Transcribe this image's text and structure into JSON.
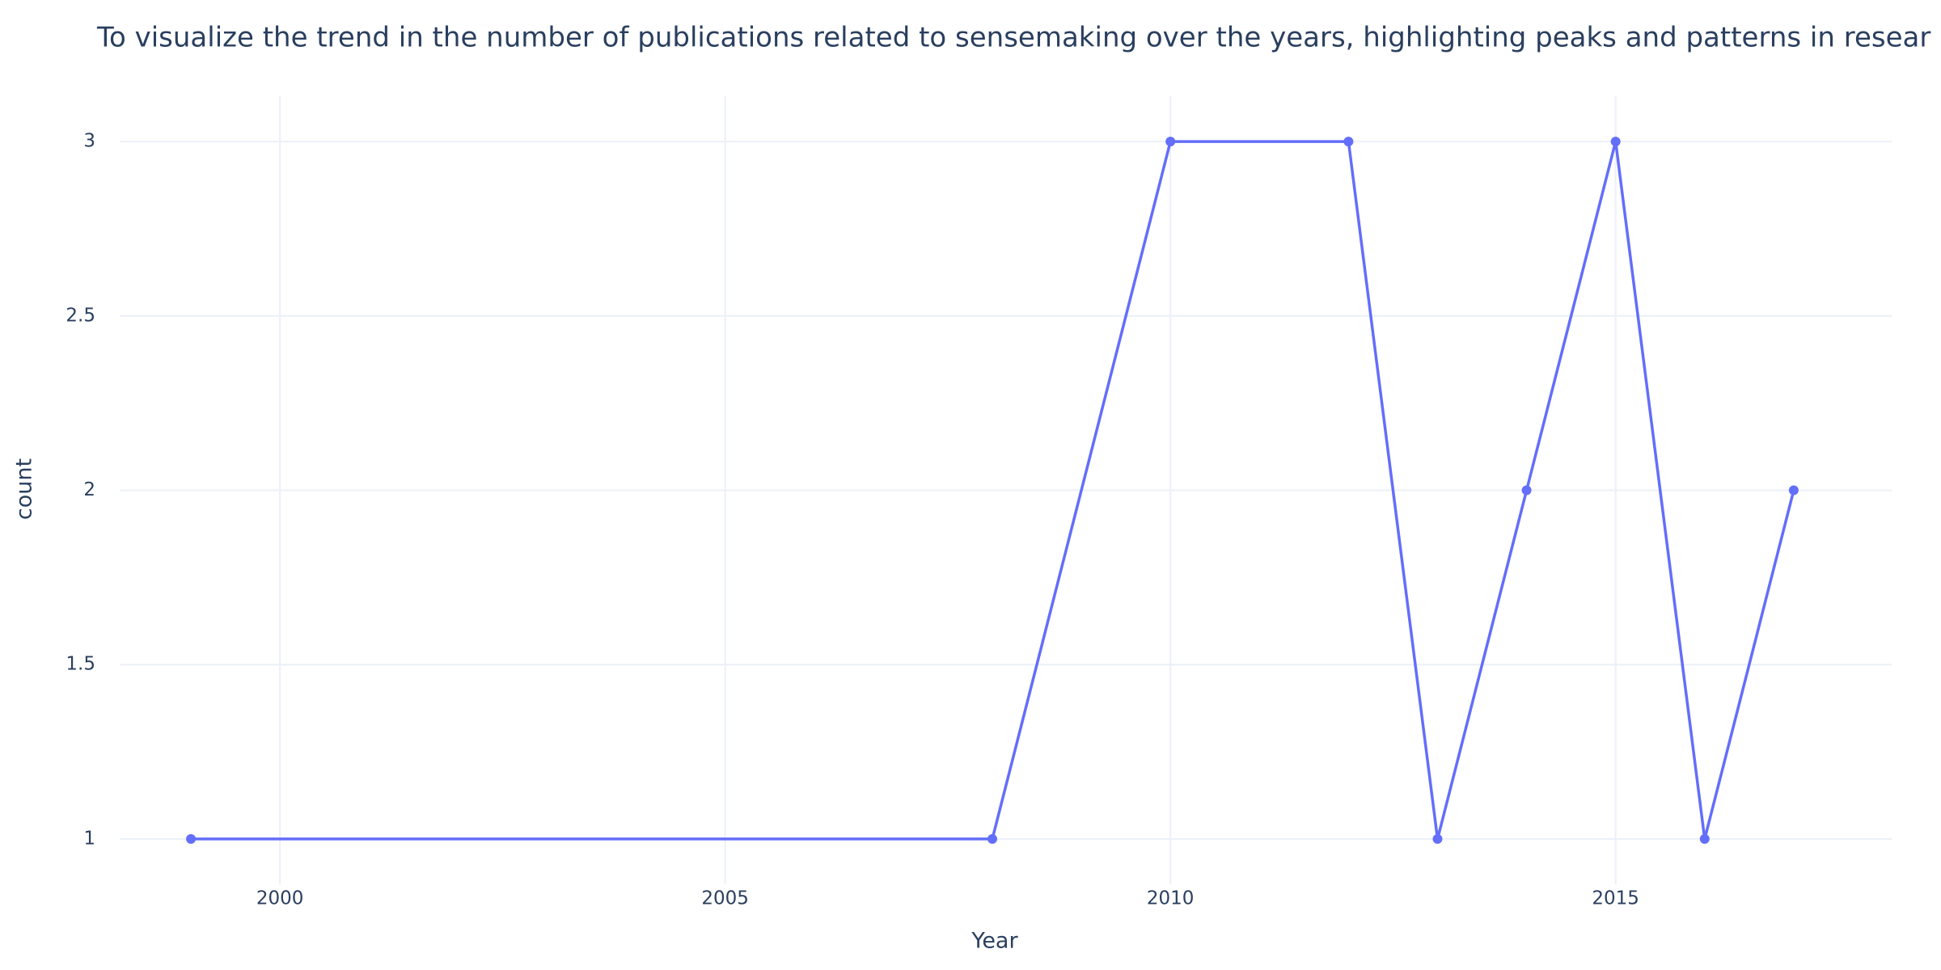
{
  "chart_data": {
    "type": "line",
    "title": "To visualize the trend in the number of publications related to sensemaking over the years, highlighting peaks and patterns in resear",
    "x_label": "Year",
    "y_label": "count",
    "x": [
      1999,
      2008,
      2010,
      2012,
      2013,
      2014,
      2015,
      2016,
      2017
    ],
    "series": [
      {
        "name": "count",
        "color": "#636efa",
        "values": [
          1,
          1,
          3,
          3,
          1,
          2,
          3,
          1,
          2
        ]
      }
    ],
    "xlim": [
      1998.2,
      2018.1
    ],
    "xticks": [
      2000,
      2005,
      2010,
      2015
    ],
    "ylim": [
      0.87,
      3.13
    ],
    "yticks": [
      1,
      1.5,
      2,
      2.5,
      3
    ],
    "grid": true
  }
}
